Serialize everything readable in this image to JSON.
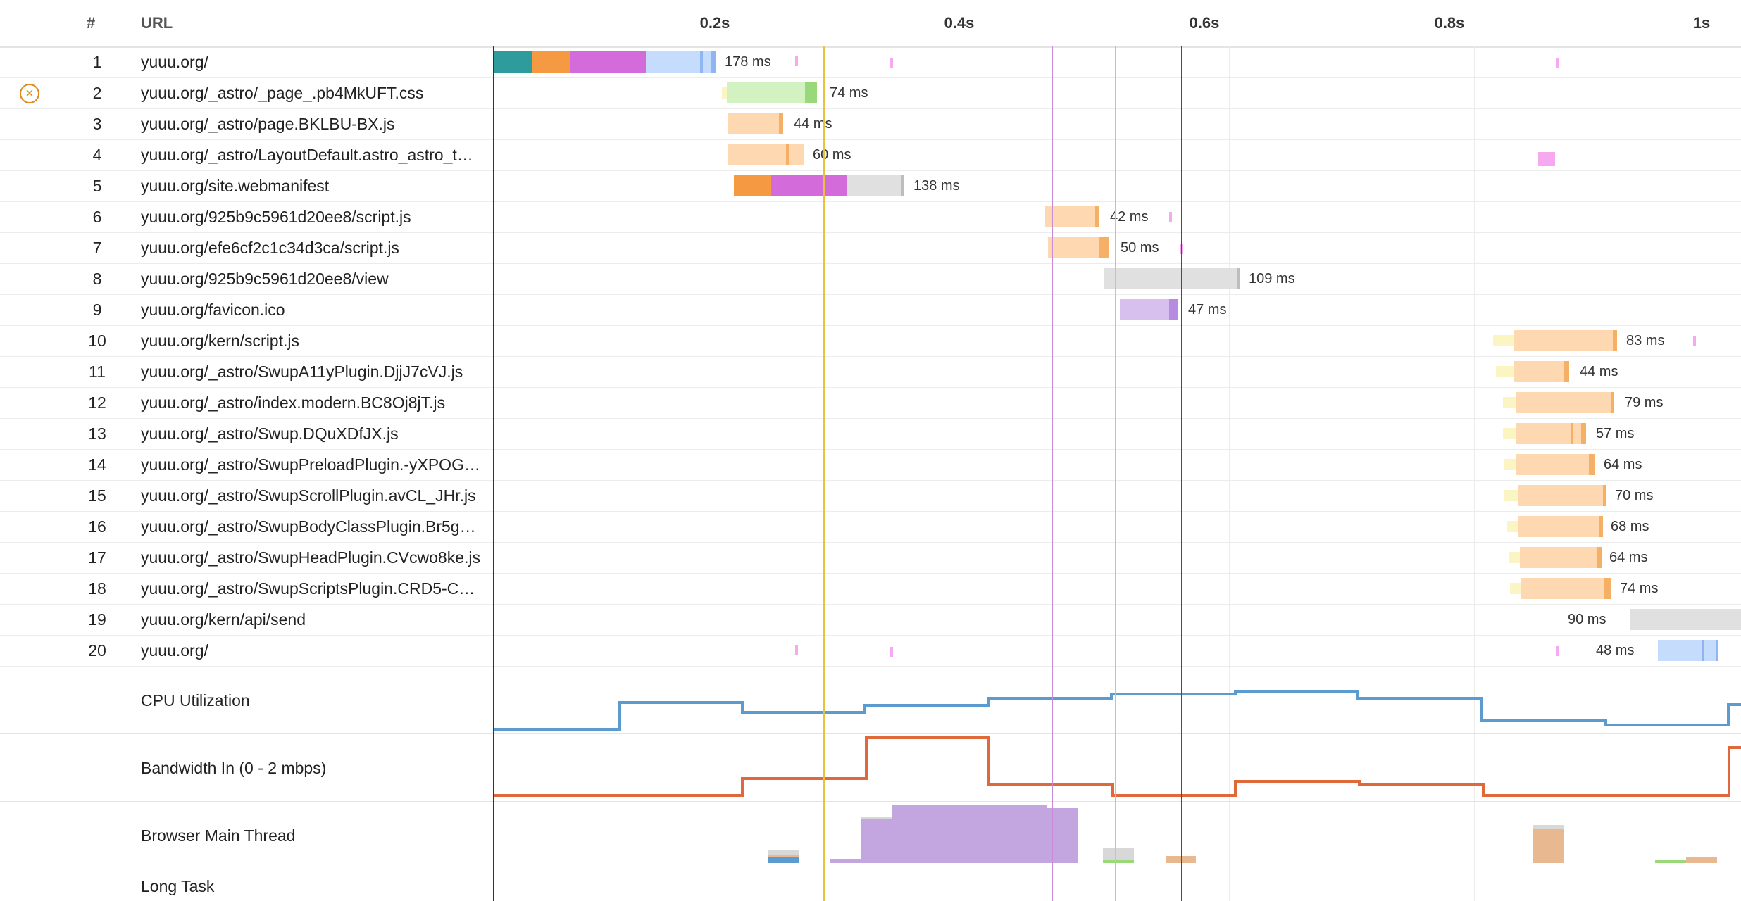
{
  "header": {
    "num_label": "#",
    "url_label": "URL"
  },
  "timeline": {
    "ticks": [
      "0.2s",
      "0.4s",
      "0.6s",
      "0.8s",
      "1s"
    ]
  },
  "requests": [
    {
      "num": "1",
      "url": "yuuu.org/",
      "duration": "178 ms",
      "error": false
    },
    {
      "num": "2",
      "url": "yuuu.org/_astro/_page_.pb4MkUFT.css",
      "duration": "74 ms",
      "error": true
    },
    {
      "num": "3",
      "url": "yuuu.org/_astro/page.BKLBU-BX.js",
      "duration": "44 ms",
      "error": false
    },
    {
      "num": "4",
      "url": "yuuu.org/_astro/LayoutDefault.astro_astro_t…",
      "duration": "60 ms",
      "error": false
    },
    {
      "num": "5",
      "url": "yuuu.org/site.webmanifest",
      "duration": "138 ms",
      "error": false
    },
    {
      "num": "6",
      "url": "yuuu.org/925b9c5961d20ee8/script.js",
      "duration": "42 ms",
      "error": false
    },
    {
      "num": "7",
      "url": "yuuu.org/efe6cf2c1c34d3ca/script.js",
      "duration": "50 ms",
      "error": false
    },
    {
      "num": "8",
      "url": "yuuu.org/925b9c5961d20ee8/view",
      "duration": "109 ms",
      "error": false
    },
    {
      "num": "9",
      "url": "yuuu.org/favicon.ico",
      "duration": "47 ms",
      "error": false
    },
    {
      "num": "10",
      "url": "yuuu.org/kern/script.js",
      "duration": "83 ms",
      "error": false
    },
    {
      "num": "11",
      "url": "yuuu.org/_astro/SwupA11yPlugin.DjjJ7cVJ.js",
      "duration": "44 ms",
      "error": false
    },
    {
      "num": "12",
      "url": "yuuu.org/_astro/index.modern.BC8Oj8jT.js",
      "duration": "79 ms",
      "error": false
    },
    {
      "num": "13",
      "url": "yuuu.org/_astro/Swup.DQuXDfJX.js",
      "duration": "57 ms",
      "error": false
    },
    {
      "num": "14",
      "url": "yuuu.org/_astro/SwupPreloadPlugin.-yXPOG…",
      "duration": "64 ms",
      "error": false
    },
    {
      "num": "15",
      "url": "yuuu.org/_astro/SwupScrollPlugin.avCL_JHr.js",
      "duration": "70 ms",
      "error": false
    },
    {
      "num": "16",
      "url": "yuuu.org/_astro/SwupBodyClassPlugin.Br5g…",
      "duration": "68 ms",
      "error": false
    },
    {
      "num": "17",
      "url": "yuuu.org/_astro/SwupHeadPlugin.CVcwo8ke.js",
      "duration": "64 ms",
      "error": false
    },
    {
      "num": "18",
      "url": "yuuu.org/_astro/SwupScriptsPlugin.CRD5-C…",
      "duration": "74 ms",
      "error": false
    },
    {
      "num": "19",
      "url": "yuuu.org/kern/api/send",
      "duration": "90 ms",
      "error": false
    },
    {
      "num": "20",
      "url": "yuuu.org/",
      "duration": "48 ms",
      "error": false
    }
  ],
  "metrics": [
    {
      "label": "CPU Utilization"
    },
    {
      "label": "Bandwidth In (0 - 2 mbps)"
    },
    {
      "label": "Browser Main Thread"
    },
    {
      "label": "Long Task"
    }
  ],
  "colors": {
    "dns": "#2e9c9c",
    "connect": "#f59a42",
    "ssl": "#d46bdb",
    "html": "#c5dcfc",
    "html_dl": "#8fb6f2",
    "css": "#d2f2c2",
    "css_dl": "#9ad97a",
    "js": "#fdd8b0",
    "js_dl": "#f5b066",
    "image": "#d8c0ee",
    "image_dl": "#b68ce0",
    "other": "#e0e0e0",
    "other_dl": "#bdbdbd",
    "wait": "#fbf5c4",
    "cpu_line": "#5b9bd0",
    "bandwidth_line": "#e0693c",
    "start_render": "#e8c23a",
    "dom_interactive": "#c98ad6",
    "dom_content_loaded": "#d2b3e6",
    "onload": "#4a3ea3"
  }
}
